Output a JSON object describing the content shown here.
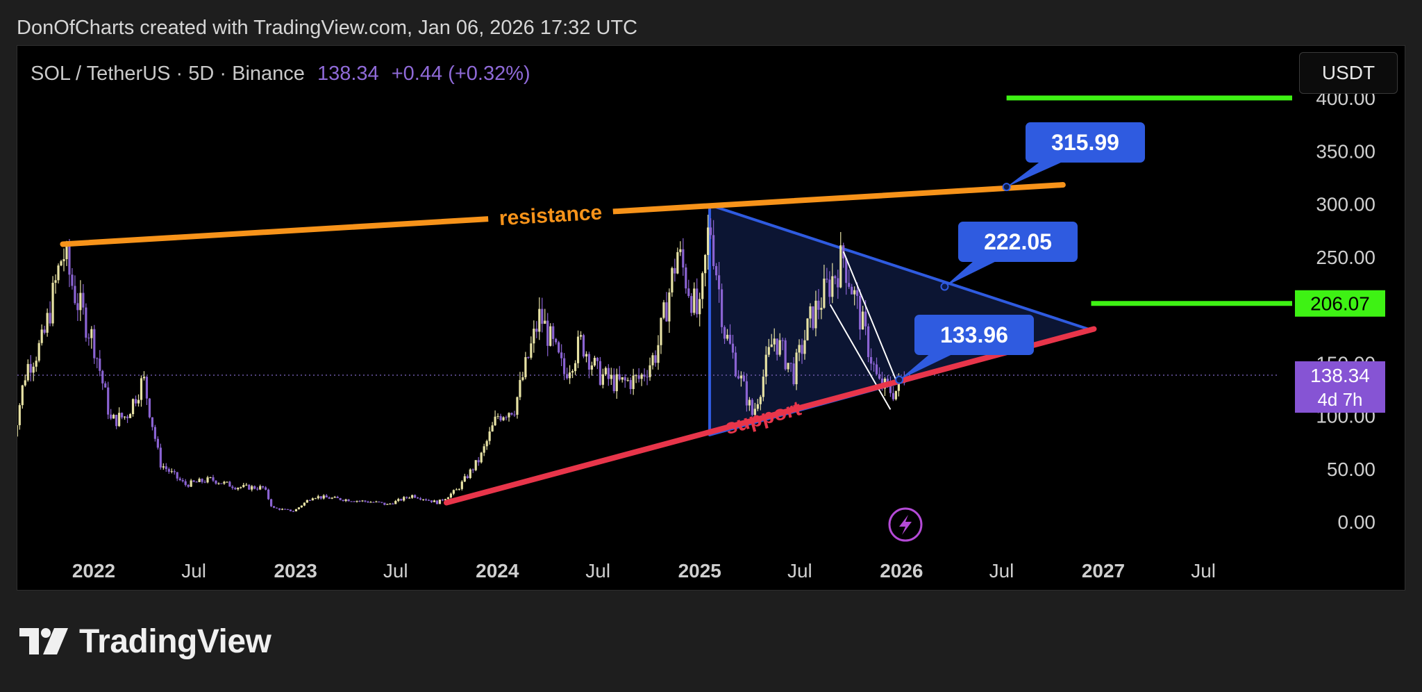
{
  "caption": "DonOfCharts created with TradingView.com, Jan 06, 2026 17:32 UTC",
  "legend": {
    "symbol": "SOL / TetherUS · 5D · Binance",
    "price": "138.34",
    "change": "+0.44 (+0.32%)"
  },
  "scale_button": "USDT",
  "brand": "TradingView",
  "colors": {
    "background": "#000000",
    "resistance": "#f7931a",
    "support": "#e8354a",
    "triangle": "#2f5be0",
    "level": "#3ef214",
    "price_tag": "#8654d4",
    "candle_up": "#e7e2a4",
    "candle_down": "#8a63d2"
  },
  "chart_data": {
    "type": "candlestick",
    "symbol": "SOL / TetherUS",
    "timeframe": "5D",
    "exchange": "Binance",
    "last_price": 138.34,
    "countdown": "4d 7h",
    "y_ticks": [
      {
        "label": "400.00",
        "value": 400
      },
      {
        "label": "350.00",
        "value": 350
      },
      {
        "label": "300.00",
        "value": 300
      },
      {
        "label": "250.00",
        "value": 250
      },
      {
        "label": "150.00",
        "value": 150
      },
      {
        "label": "100.00",
        "value": 100
      },
      {
        "label": "50.00",
        "value": 50
      },
      {
        "label": "0.00",
        "value": 0
      }
    ],
    "x_ticks": [
      {
        "label": "2022",
        "date": "2022-01-01",
        "bold": true
      },
      {
        "label": "Jul",
        "date": "2022-07-01",
        "bold": false
      },
      {
        "label": "2023",
        "date": "2023-01-01",
        "bold": true
      },
      {
        "label": "Jul",
        "date": "2023-07-01",
        "bold": false
      },
      {
        "label": "2024",
        "date": "2024-01-01",
        "bold": true
      },
      {
        "label": "Jul",
        "date": "2024-07-01",
        "bold": false
      },
      {
        "label": "2025",
        "date": "2025-01-01",
        "bold": true
      },
      {
        "label": "Jul",
        "date": "2025-07-01",
        "bold": false
      },
      {
        "label": "2026",
        "date": "2026-01-01",
        "bold": true
      },
      {
        "label": "Jul",
        "date": "2026-07-01",
        "bold": false
      },
      {
        "label": "2027",
        "date": "2027-01-01",
        "bold": true
      },
      {
        "label": "Jul",
        "date": "2027-07-01",
        "bold": false
      }
    ],
    "y_range": [
      -5,
      405
    ],
    "price_path": [
      [
        "2021-08-05",
        70
      ],
      [
        "2021-09-01",
        145
      ],
      [
        "2021-10-01",
        170
      ],
      [
        "2021-11-06",
        255
      ],
      [
        "2021-12-01",
        210
      ],
      [
        "2022-01-01",
        170
      ],
      [
        "2022-02-01",
        95
      ],
      [
        "2022-03-01",
        100
      ],
      [
        "2022-04-01",
        135
      ],
      [
        "2022-05-01",
        55
      ],
      [
        "2022-06-15",
        35
      ],
      [
        "2022-08-01",
        40
      ],
      [
        "2022-09-15",
        33
      ],
      [
        "2022-11-05",
        32
      ],
      [
        "2022-11-20",
        13
      ],
      [
        "2022-12-29",
        10
      ],
      [
        "2023-02-01",
        24
      ],
      [
        "2023-04-01",
        21
      ],
      [
        "2023-06-01",
        18
      ],
      [
        "2023-06-15",
        16
      ],
      [
        "2023-08-01",
        25
      ],
      [
        "2023-09-15",
        18
      ],
      [
        "2023-10-20",
        30
      ],
      [
        "2023-12-01",
        60
      ],
      [
        "2024-01-01",
        100
      ],
      [
        "2024-02-01",
        108
      ],
      [
        "2024-03-18",
        195
      ],
      [
        "2024-05-01",
        140
      ],
      [
        "2024-06-01",
        170
      ],
      [
        "2024-07-01",
        140
      ],
      [
        "2024-08-05",
        130
      ],
      [
        "2024-09-15",
        135
      ],
      [
        "2024-10-15",
        160
      ],
      [
        "2024-11-22",
        255
      ],
      [
        "2024-12-31",
        190
      ],
      [
        "2025-01-19",
        285
      ],
      [
        "2025-02-15",
        180
      ],
      [
        "2025-04-07",
        100
      ],
      [
        "2025-05-15",
        175
      ],
      [
        "2025-06-20",
        140
      ],
      [
        "2025-07-20",
        190
      ],
      [
        "2025-09-18",
        250
      ],
      [
        "2025-10-20",
        190
      ],
      [
        "2025-11-20",
        130
      ],
      [
        "2025-12-20",
        122
      ],
      [
        "2026-01-06",
        138
      ]
    ],
    "drawings": {
      "resistance": {
        "label": "resistance",
        "from": [
          "2021-11-06",
          262
        ],
        "to": [
          "2026-10-20",
          318
        ]
      },
      "support": {
        "label": "support",
        "from": [
          "2023-10-01",
          18
        ],
        "to": [
          "2026-12-15",
          182
        ]
      },
      "triangle": {
        "apex_top": [
          "2025-01-19",
          299
        ],
        "base_bottom": [
          "2025-01-19",
          82
        ],
        "apex_right": [
          "2026-12-10",
          181
        ]
      },
      "wedge_lines": [
        {
          "from": [
            "2025-09-18",
            255
          ],
          "to": [
            "2025-12-25",
            130
          ]
        },
        {
          "from": [
            "2025-08-25",
            205
          ],
          "to": [
            "2025-12-12",
            106
          ]
        }
      ],
      "targets": [
        {
          "label": "315.99",
          "anchor": [
            "2026-07-10",
            316
          ]
        },
        {
          "label": "222.05",
          "anchor": [
            "2026-03-20",
            222
          ]
        },
        {
          "label": "133.96",
          "anchor": [
            "2025-12-28",
            134
          ]
        }
      ],
      "levels": [
        {
          "value": 206.07,
          "label": "206.07",
          "from": "2026-12-10"
        },
        {
          "value": 400,
          "from": "2026-07-10"
        }
      ]
    }
  }
}
